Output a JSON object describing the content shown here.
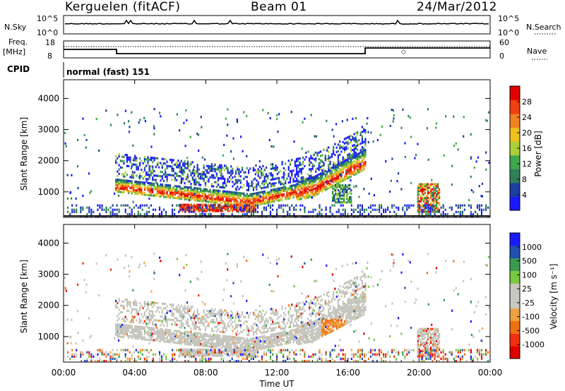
{
  "header": {
    "station": "Kerguelen (fitACF)",
    "beam": "Beam 01",
    "date": "24/Mar/2012"
  },
  "panels": {
    "sky": {
      "left_label": "N.Sky",
      "right_label": "N.Search",
      "left_ticks": [
        "10^5",
        "10^0"
      ],
      "right_ticks": [
        "10^5",
        "10^0"
      ]
    },
    "freq": {
      "left_label_1": "Freq.",
      "left_label_2": "[MHz]",
      "right_label": "Nave",
      "left_ticks": [
        "18",
        "8"
      ],
      "right_ticks": [
        "60",
        "0"
      ]
    },
    "cpid": {
      "label": "CPID",
      "value": "normal (fast) 151"
    }
  },
  "colors": {
    "power_scale": [
      "#1a1aff",
      "#1c3ea0",
      "#2f7f5a",
      "#3fa84a",
      "#a9d03a",
      "#f0c020",
      "#f08020",
      "#f04010",
      "#e00000"
    ],
    "velocity_scale": [
      "#e00000",
      "#f03010",
      "#f07010",
      "#f0a040",
      "#c8c8c0",
      "#c8c8c0",
      "#78c840",
      "#3a9a50",
      "#2050b0",
      "#1a1aff"
    ],
    "ground_scatter": "#c4c4bc"
  },
  "chart_data": [
    {
      "type": "heatmap",
      "name": "Power",
      "xlabel": "",
      "ylabel": "Slant Range [km]",
      "x_ticks": [
        "00:00",
        "04:00",
        "08:00",
        "12:00",
        "16:00",
        "20:00",
        "00:00"
      ],
      "y_ticks": [
        "4000",
        "3000",
        "2000",
        "1000"
      ],
      "xlim_hours": [
        0,
        24
      ],
      "ylim_km": [
        180,
        4600
      ],
      "colorbar_label": "Power [dB]",
      "colorbar_ticks": [
        "28",
        "24",
        "20",
        "16",
        "12",
        "8",
        "4"
      ],
      "colorbar_range": [
        0,
        32
      ],
      "regions": [
        {
          "t0": 2.9,
          "t1": 17.0,
          "r_start": 1150,
          "r_end": 1250,
          "r_mid": 780,
          "width": 380,
          "note": "main echo band"
        },
        {
          "t0": 6.5,
          "t1": 10.8,
          "r_start": 550,
          "r_end": 600,
          "r_mid": 450,
          "width": 150
        },
        {
          "t0": 18.0,
          "t1": 19.6,
          "r_start": 300,
          "r_end": 300,
          "r_mid": 300,
          "width": 150
        }
      ]
    },
    {
      "type": "heatmap",
      "name": "Velocity",
      "xlabel": "Time UT",
      "ylabel": "Slant Range [km]",
      "x_ticks": [
        "00:00",
        "04:00",
        "08:00",
        "12:00",
        "16:00",
        "20:00",
        "00:00"
      ],
      "y_ticks": [
        "4000",
        "3000",
        "2000",
        "1000"
      ],
      "xlim_hours": [
        0,
        24
      ],
      "ylim_km": [
        180,
        4600
      ],
      "colorbar_label": "Velocity [m s⁻¹]",
      "colorbar_ticks": [
        "1000",
        "500",
        "100",
        "25",
        "-25",
        "-100",
        "-500",
        "-1000"
      ]
    }
  ]
}
